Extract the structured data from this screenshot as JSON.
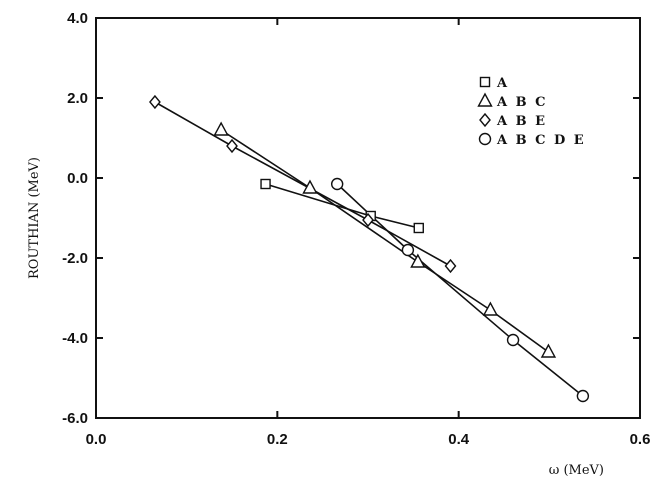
{
  "chart_data": {
    "type": "line",
    "title": "",
    "xlabel": "ω (MeV)",
    "ylabel": "ROUTHIAN (MeV)",
    "xlim": [
      0.0,
      0.6
    ],
    "ylim": [
      -6.0,
      4.0
    ],
    "x_ticks": [
      0.0,
      0.2,
      0.4,
      0.6
    ],
    "y_ticks": [
      4.0,
      2.0,
      0.0,
      -2.0,
      -4.0,
      -6.0
    ],
    "x_tick_labels": [
      "0.0",
      "0.2",
      "0.4",
      "0.6"
    ],
    "y_tick_labels": [
      "4.0",
      "2.0",
      "0.0",
      "-2.0",
      "-4.0",
      "-6.0"
    ],
    "grid": false,
    "legend_position": "top-right",
    "series": [
      {
        "name": "A",
        "marker": "square",
        "x": [
          0.187,
          0.303,
          0.356
        ],
        "y": [
          -0.15,
          -0.95,
          -1.25
        ]
      },
      {
        "name": "A B C",
        "marker": "triangle",
        "x": [
          0.138,
          0.236,
          0.355,
          0.435,
          0.499
        ],
        "y": [
          1.2,
          -0.25,
          -2.1,
          -3.3,
          -4.35
        ]
      },
      {
        "name": "A B E",
        "marker": "diamond",
        "x": [
          0.065,
          0.15,
          0.3,
          0.391
        ],
        "y": [
          1.9,
          0.8,
          -1.05,
          -2.2
        ]
      },
      {
        "name": "A B C D E",
        "marker": "circle",
        "x": [
          0.266,
          0.344,
          0.46,
          0.537
        ],
        "y": [
          -0.15,
          -1.8,
          -4.05,
          -5.45
        ]
      }
    ]
  }
}
